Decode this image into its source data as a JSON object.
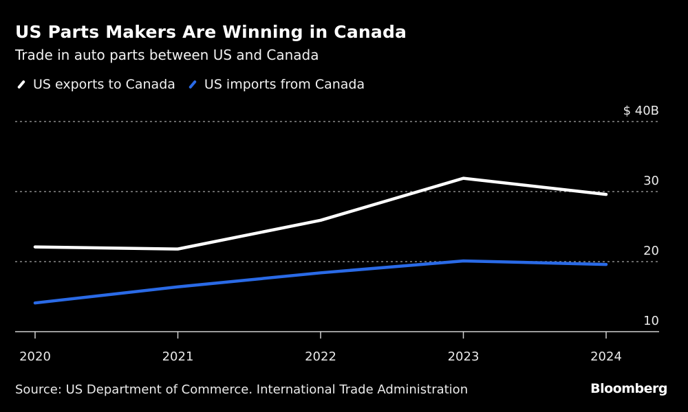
{
  "header": {
    "title": "US Parts Makers Are Winning in Canada",
    "subtitle": "Trade in auto parts between US and Canada"
  },
  "legend": [
    {
      "label": "US exports to Canada",
      "color": "#ffffff"
    },
    {
      "label": "US imports from Canada",
      "color": "#2a6ae6"
    }
  ],
  "footer": {
    "source": "Source: US Department of Commerce. International Trade Administration",
    "brand": "Bloomberg"
  },
  "chart_data": {
    "type": "line",
    "title": "US Parts Makers Are Winning in Canada",
    "subtitle": "Trade in auto parts between US and Canada",
    "xlabel": "",
    "ylabel": "",
    "x": [
      "2020",
      "2021",
      "2022",
      "2023",
      "2024"
    ],
    "series": [
      {
        "name": "US exports to Canada",
        "color": "#ffffff",
        "values": [
          22.1,
          21.8,
          25.9,
          31.9,
          29.6
        ]
      },
      {
        "name": "US imports from Canada",
        "color": "#2a6ae6",
        "values": [
          14.1,
          16.4,
          18.4,
          20.1,
          19.6
        ]
      }
    ],
    "ylim": [
      10,
      40
    ],
    "yticks": [
      10,
      20,
      30,
      40
    ],
    "ytick_labels": [
      "10",
      "20",
      "30",
      "$ 40B"
    ],
    "grid": true,
    "legend_position": "top-left",
    "y_axis_side": "right"
  }
}
